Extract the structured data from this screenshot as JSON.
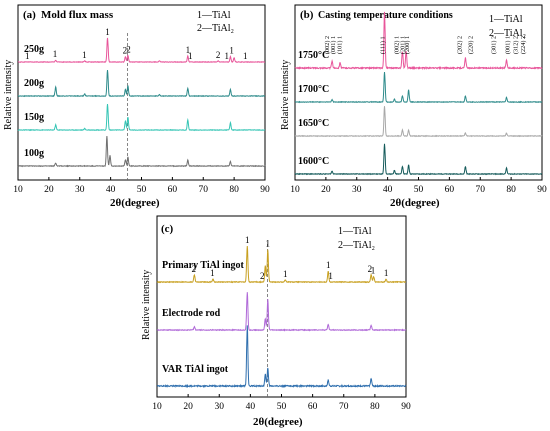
{
  "chart_data": [
    {
      "type": "line",
      "panel_label": "(a)",
      "title": "Mold flux mass",
      "xlabel": "2θ(degree)",
      "ylabel": "Relative intensity",
      "xlim": [
        10,
        90
      ],
      "xticks": [
        10,
        20,
        30,
        40,
        50,
        60,
        70,
        80,
        90
      ],
      "dashed_ref_x": 45.5,
      "legend": [
        "1—TiAl",
        "2—TiAl₂"
      ],
      "legend_position": "top-right",
      "series": [
        {
          "name": "250g",
          "color": "#e8559a",
          "peaks": [
            [
              39.0,
              1.0
            ],
            [
              44.8,
              0.22
            ],
            [
              45.6,
              0.28
            ],
            [
              65.0,
              0.25
            ],
            [
              78.8,
              0.22
            ],
            [
              80.0,
              0.18
            ],
            [
              22.2,
              0.08
            ],
            [
              31.6,
              0.05
            ],
            [
              55.8,
              0.05
            ],
            [
              74.8,
              0.05
            ]
          ]
        },
        {
          "name": "200g",
          "color": "#2e8b8b",
          "peaks": [
            [
              39.0,
              1.0
            ],
            [
              44.8,
              0.25
            ],
            [
              45.6,
              0.4
            ],
            [
              65.0,
              0.3
            ],
            [
              78.8,
              0.25
            ],
            [
              22.2,
              0.35
            ],
            [
              31.6,
              0.08
            ],
            [
              55.8,
              0.05
            ]
          ]
        },
        {
          "name": "150g",
          "color": "#36c5b5",
          "peaks": [
            [
              39.0,
              1.0
            ],
            [
              44.8,
              0.35
            ],
            [
              45.6,
              0.5
            ],
            [
              65.0,
              0.4
            ],
            [
              78.8,
              0.28
            ],
            [
              22.2,
              0.2
            ],
            [
              31.6,
              0.06
            ]
          ]
        },
        {
          "name": "100g",
          "color": "#707070",
          "peaks": [
            [
              38.8,
              1.0
            ],
            [
              39.8,
              0.35
            ],
            [
              44.8,
              0.2
            ],
            [
              45.6,
              0.3
            ],
            [
              65.0,
              0.2
            ],
            [
              78.8,
              0.15
            ],
            [
              22.2,
              0.1
            ]
          ]
        }
      ],
      "annotations": [
        {
          "text": "1",
          "x": 13.0
        },
        {
          "text": "1",
          "x": 22.0
        },
        {
          "text": "1",
          "x": 31.5
        },
        {
          "text": "1",
          "x": 39.0
        },
        {
          "text": "2",
          "x": 44.6
        },
        {
          "text": "2",
          "x": 45.8
        },
        {
          "text": "1",
          "x": 65.0
        },
        {
          "text": "1",
          "x": 65.8
        },
        {
          "text": "2",
          "x": 74.8
        },
        {
          "text": "1",
          "x": 77.6
        },
        {
          "text": "1",
          "x": 79.2
        },
        {
          "text": "1",
          "x": 83.6
        }
      ]
    },
    {
      "type": "line",
      "panel_label": "(b)",
      "title": "Casting temperature conditions",
      "xlabel": "2θ(degree)",
      "ylabel": "Relative intensity",
      "xlim": [
        10,
        90
      ],
      "xticks": [
        10,
        20,
        30,
        40,
        50,
        60,
        70,
        80,
        90
      ],
      "legend": [
        "1—TiAl",
        "2—TiAl₂"
      ],
      "legend_position": "top-right",
      "series": [
        {
          "name": "1750°C",
          "color": "#e8559a",
          "peaks": [
            [
              39.0,
              1.0
            ],
            [
              44.8,
              0.3
            ],
            [
              46.0,
              0.3
            ],
            [
              65.2,
              0.18
            ],
            [
              78.5,
              0.15
            ],
            [
              22.0,
              0.12
            ],
            [
              24.6,
              0.1
            ]
          ]
        },
        {
          "name": "1700°C",
          "color": "#2e8b8b",
          "peaks": [
            [
              39.0,
              1.0
            ],
            [
              42.2,
              0.1
            ],
            [
              44.8,
              0.2
            ],
            [
              46.8,
              0.4
            ],
            [
              65.2,
              0.2
            ],
            [
              78.5,
              0.15
            ],
            [
              22.0,
              0.08
            ]
          ]
        },
        {
          "name": "1650°C",
          "color": "#a8a8a8",
          "peaks": [
            [
              39.0,
              1.0
            ],
            [
              44.8,
              0.2
            ],
            [
              46.8,
              0.2
            ],
            [
              65.2,
              0.1
            ],
            [
              78.5,
              0.1
            ]
          ]
        },
        {
          "name": "1600°C",
          "color": "#145a5a",
          "peaks": [
            [
              39.0,
              1.0
            ],
            [
              42.2,
              0.12
            ],
            [
              44.8,
              0.25
            ],
            [
              46.8,
              0.3
            ],
            [
              65.2,
              0.25
            ],
            [
              78.5,
              0.2
            ],
            [
              22.0,
              0.1
            ]
          ]
        }
      ],
      "hkl_labels": [
        "(002) 2",
        "(001) 1",
        "(101) 1",
        "(111) 1",
        "(002) 1",
        "(201) 1",
        "(200) 1",
        "(202) 2",
        "(220) 2",
        "(301) 2",
        "(001) 1",
        "(312) 2",
        "(224) 2"
      ]
    },
    {
      "type": "line",
      "panel_label": "(c)",
      "title": "",
      "xlabel": "2θ(degree)",
      "ylabel": "Relative intensity",
      "xlim": [
        10,
        90
      ],
      "xticks": [
        10,
        20,
        30,
        40,
        50,
        60,
        70,
        80,
        90
      ],
      "dashed_ref_x": 45.5,
      "legend": [
        "1—TiAl",
        "2—TiAl₂"
      ],
      "legend_position": "top-right",
      "series": [
        {
          "name": "Primary TiAl ingot",
          "color": "#c8a020",
          "peaks": [
            [
              39.0,
              1.0
            ],
            [
              44.8,
              0.45
            ],
            [
              45.6,
              0.9
            ],
            [
              65.0,
              0.3
            ],
            [
              78.8,
              0.2
            ],
            [
              79.6,
              0.15
            ],
            [
              22.0,
              0.2
            ],
            [
              28.0,
              0.08
            ],
            [
              51.2,
              0.06
            ],
            [
              83.6,
              0.08
            ]
          ]
        },
        {
          "name": "Electrode rod",
          "color": "#b06ad8",
          "peaks": [
            [
              39.0,
              1.0
            ],
            [
              44.8,
              0.3
            ],
            [
              45.6,
              0.8
            ],
            [
              65.0,
              0.15
            ],
            [
              78.8,
              0.12
            ],
            [
              22.0,
              0.08
            ]
          ]
        },
        {
          "name": "VAR TiAl ingot",
          "color": "#2f6fae",
          "peaks": [
            [
              39.0,
              1.0
            ],
            [
              44.8,
              0.2
            ],
            [
              45.6,
              0.3
            ],
            [
              65.0,
              0.1
            ],
            [
              78.8,
              0.12
            ]
          ]
        }
      ],
      "annotations": [
        {
          "text": "2",
          "x": 21.8
        },
        {
          "text": "1",
          "x": 27.8
        },
        {
          "text": "1",
          "x": 39.0
        },
        {
          "text": "2",
          "x": 43.8
        },
        {
          "text": "1",
          "x": 45.6
        },
        {
          "text": "1",
          "x": 51.2
        },
        {
          "text": "1",
          "x": 65.0
        },
        {
          "text": "1",
          "x": 65.8
        },
        {
          "text": "2",
          "x": 78.4
        },
        {
          "text": "1",
          "x": 79.4
        },
        {
          "text": "1",
          "x": 83.6
        }
      ]
    }
  ]
}
